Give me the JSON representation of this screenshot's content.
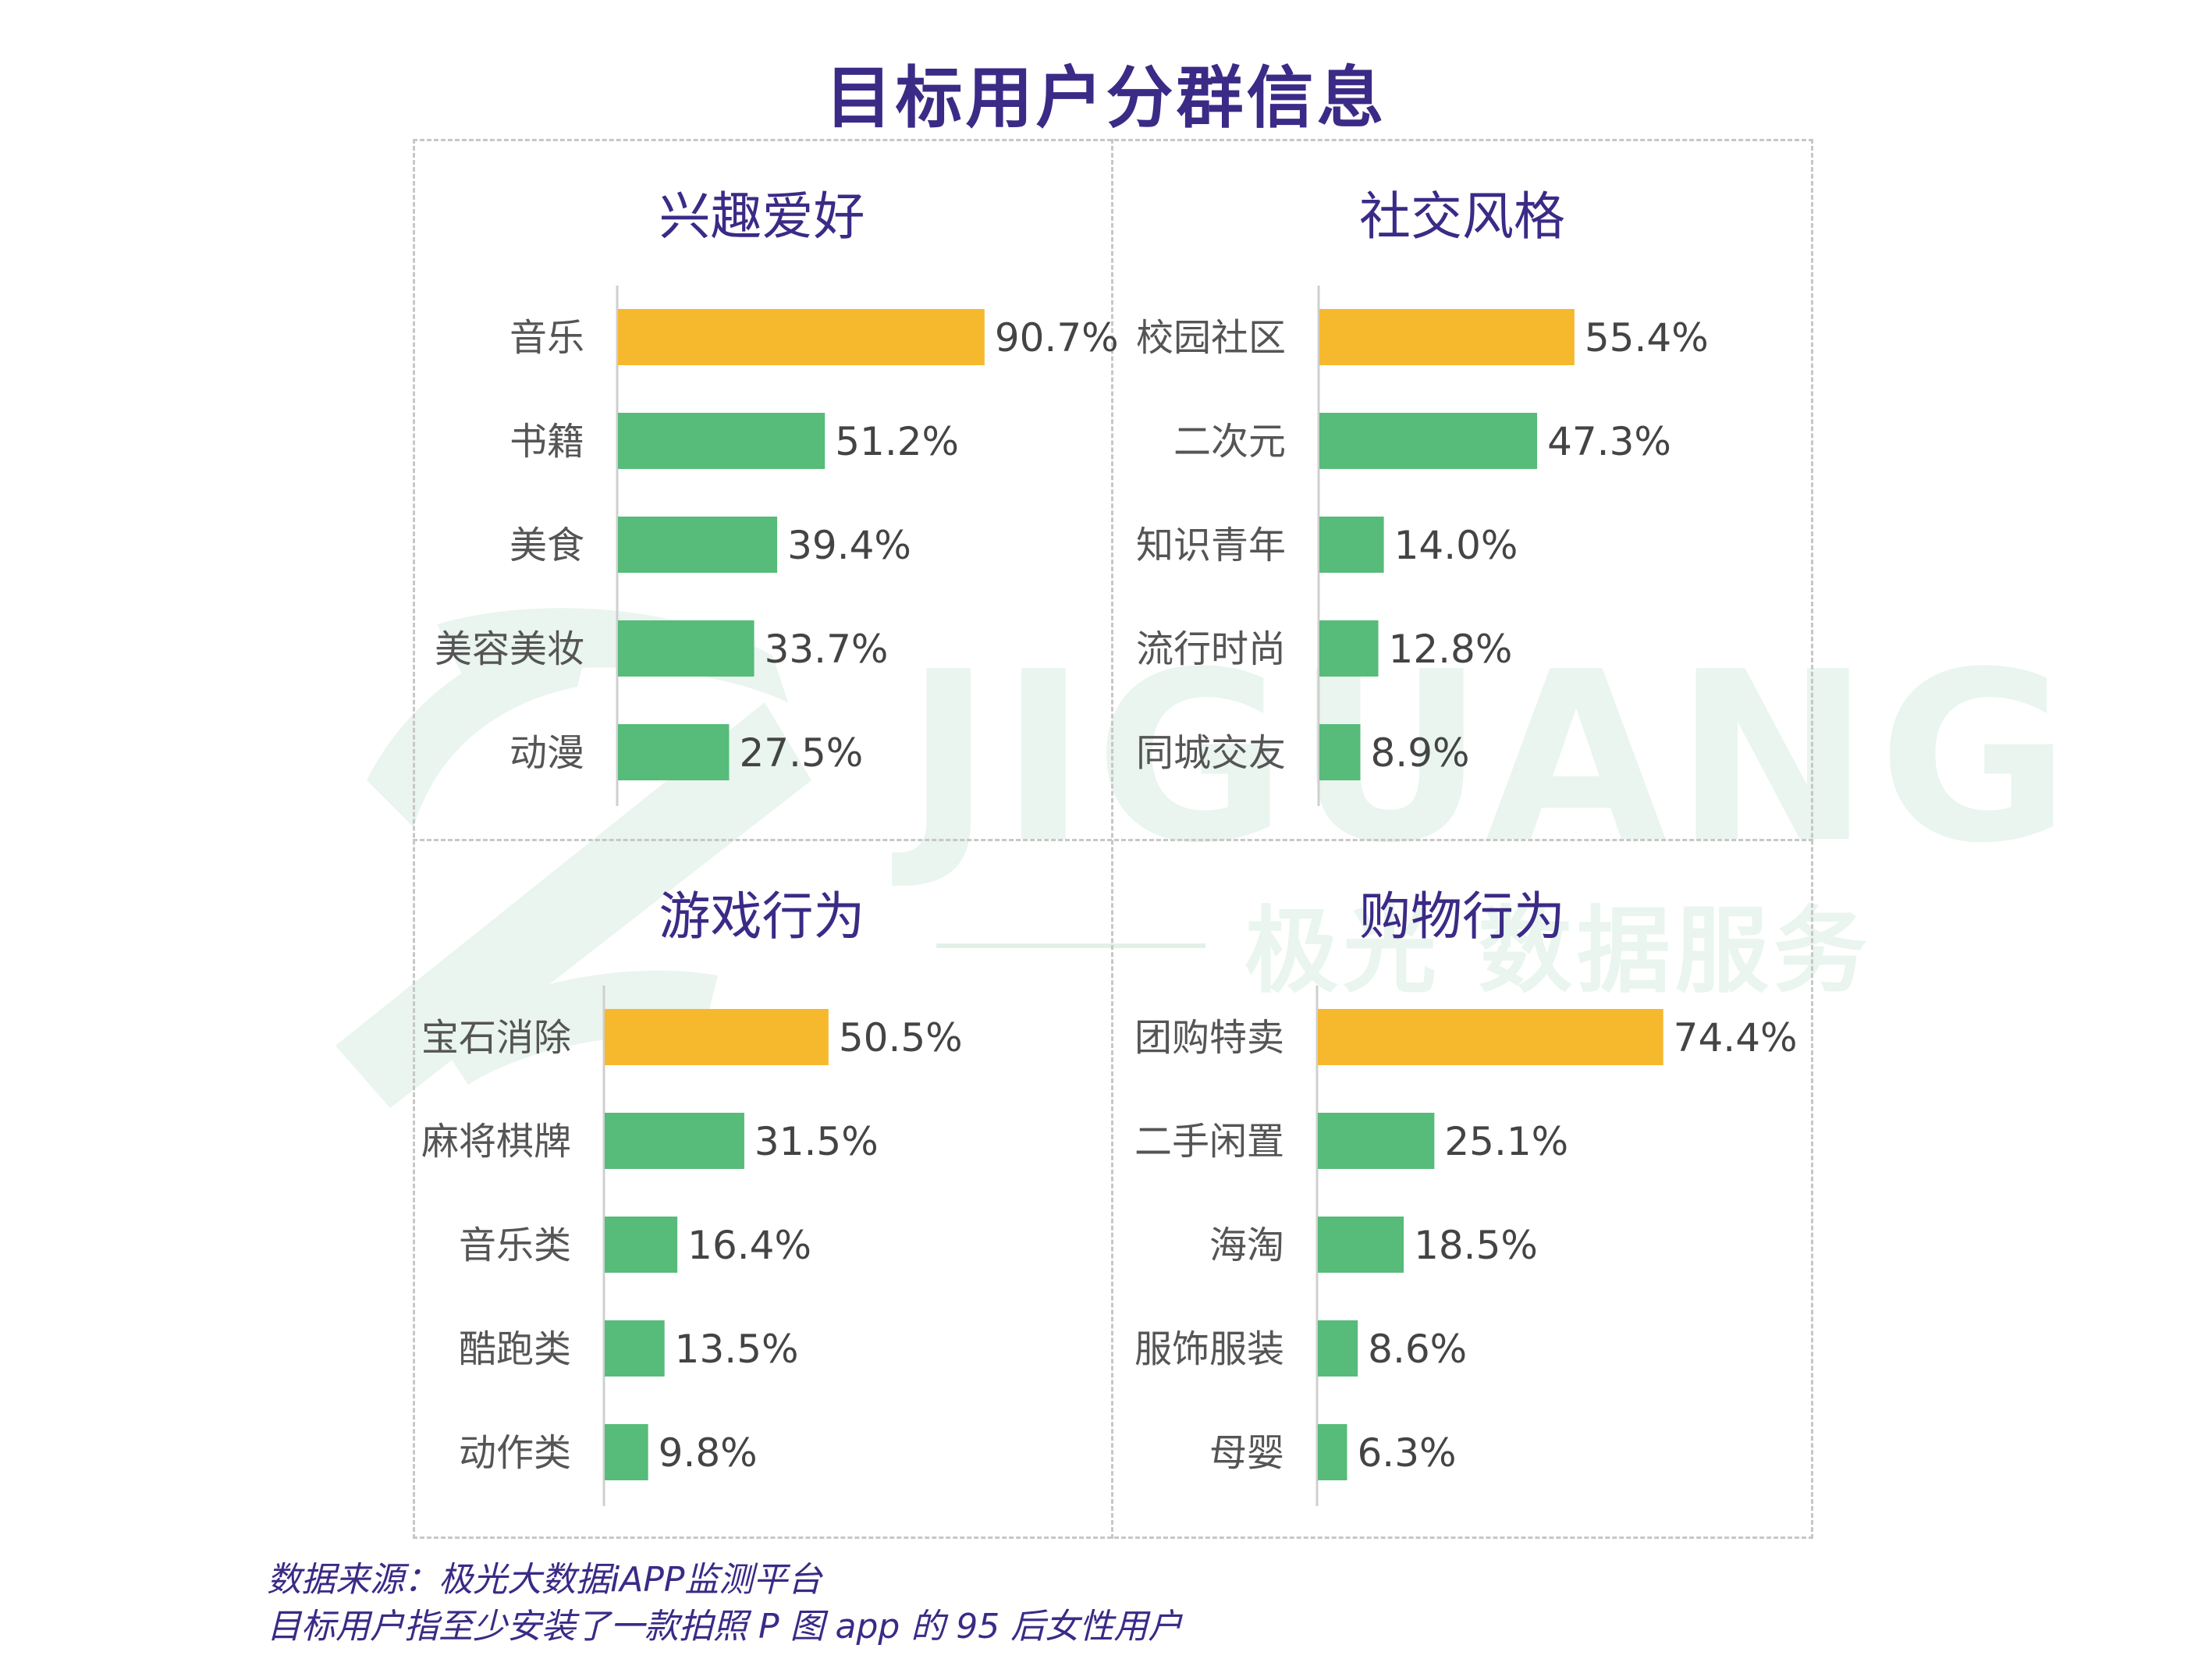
{
  "title": "目标用户分群信息",
  "watermark": {
    "brand": "JIGUANG",
    "subtitle": "极光 数据服务"
  },
  "colors": {
    "highlight": "#f6b82d",
    "bar": "#57bb7a",
    "title": "#3b2a86",
    "axis": "#cfcfcf"
  },
  "chart_data": [
    {
      "type": "bar",
      "orientation": "horizontal",
      "title": "兴趣爱好",
      "categories": [
        "音乐",
        "书籍",
        "美食",
        "美容美妆",
        "动漫"
      ],
      "values": [
        90.7,
        51.2,
        39.4,
        33.7,
        27.5
      ],
      "labels": [
        "90.7%",
        "51.2%",
        "39.4%",
        "33.7%",
        "27.5%"
      ],
      "unit": "%",
      "highlight_index": 0,
      "xlim": [
        0,
        100
      ]
    },
    {
      "type": "bar",
      "orientation": "horizontal",
      "title": "社交风格",
      "categories": [
        "校园社区",
        "二次元",
        "知识青年",
        "流行时尚",
        "同城交友"
      ],
      "values": [
        55.4,
        47.3,
        14.0,
        12.8,
        8.9
      ],
      "labels": [
        "55.4%",
        "47.3%",
        "14.0%",
        "12.8%",
        "8.9%"
      ],
      "unit": "%",
      "highlight_index": 0,
      "xlim": [
        0,
        100
      ]
    },
    {
      "type": "bar",
      "orientation": "horizontal",
      "title": "游戏行为",
      "categories": [
        "宝石消除",
        "麻将棋牌",
        "音乐类",
        "酷跑类",
        "动作类"
      ],
      "values": [
        50.5,
        31.5,
        16.4,
        13.5,
        9.8
      ],
      "labels": [
        "50.5%",
        "31.5%",
        "16.4%",
        "13.5%",
        "9.8%"
      ],
      "unit": "%",
      "highlight_index": 0,
      "xlim": [
        0,
        100
      ]
    },
    {
      "type": "bar",
      "orientation": "horizontal",
      "title": "购物行为",
      "categories": [
        "团购特卖",
        "二手闲置",
        "海淘",
        "服饰服装",
        "母婴"
      ],
      "values": [
        74.4,
        25.1,
        18.5,
        8.6,
        6.3
      ],
      "labels": [
        "74.4%",
        "25.1%",
        "18.5%",
        "8.6%",
        "6.3%"
      ],
      "unit": "%",
      "highlight_index": 0,
      "xlim": [
        0,
        100
      ]
    }
  ],
  "footnotes": [
    "数据来源：极光大数据iAPP监测平台",
    "目标用户指至少安装了一款拍照 P 图 app 的 95 后女性用户"
  ]
}
